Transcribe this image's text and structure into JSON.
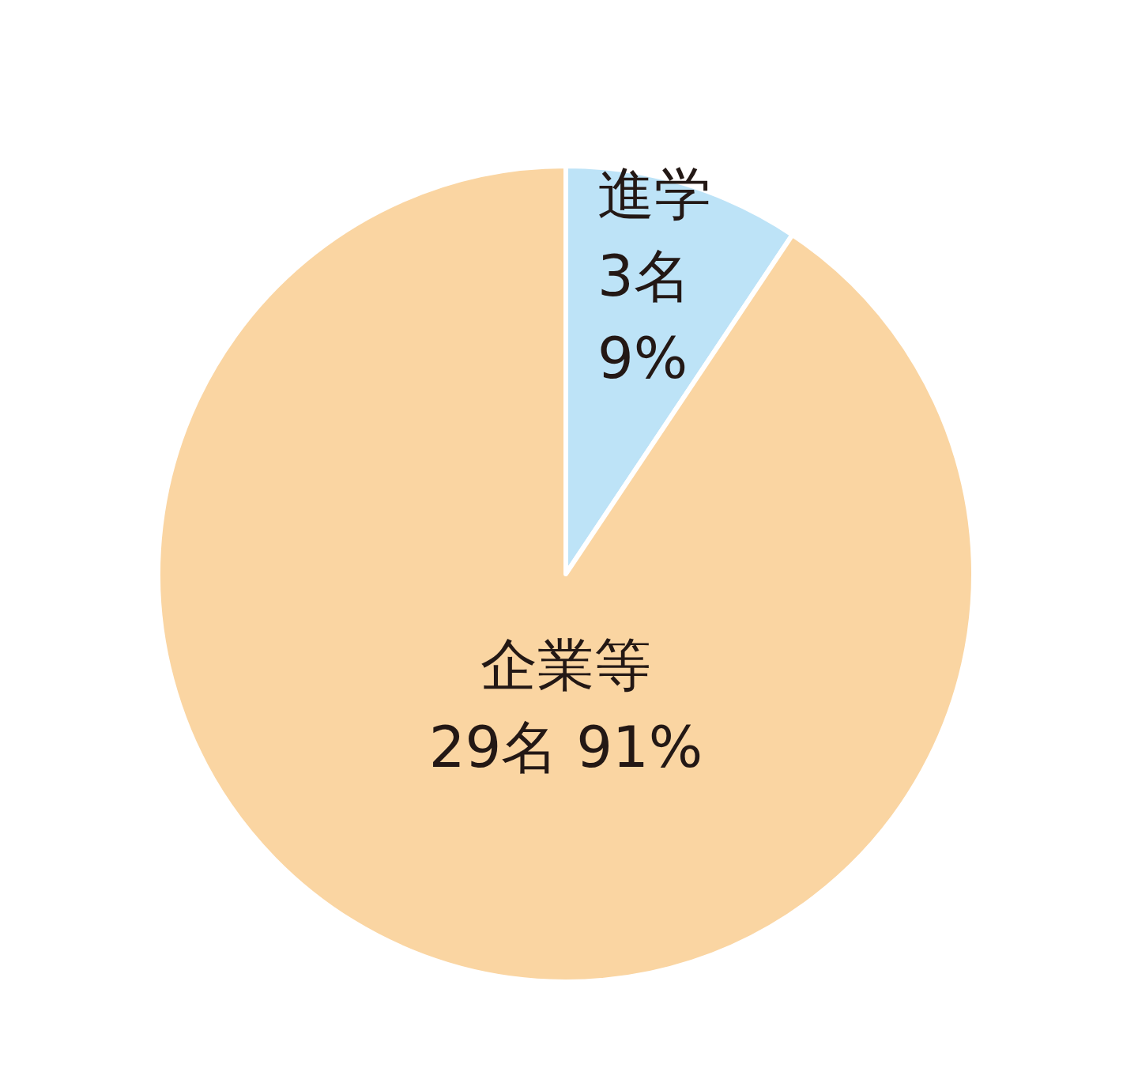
{
  "chart_data": {
    "type": "pie",
    "categories": [
      "進学",
      "企業等"
    ],
    "values": [
      3,
      29
    ],
    "value_labels": [
      "3名 9%",
      "29名 91%"
    ],
    "colors": [
      "#bde3f7",
      "#fad5a2"
    ]
  }
}
